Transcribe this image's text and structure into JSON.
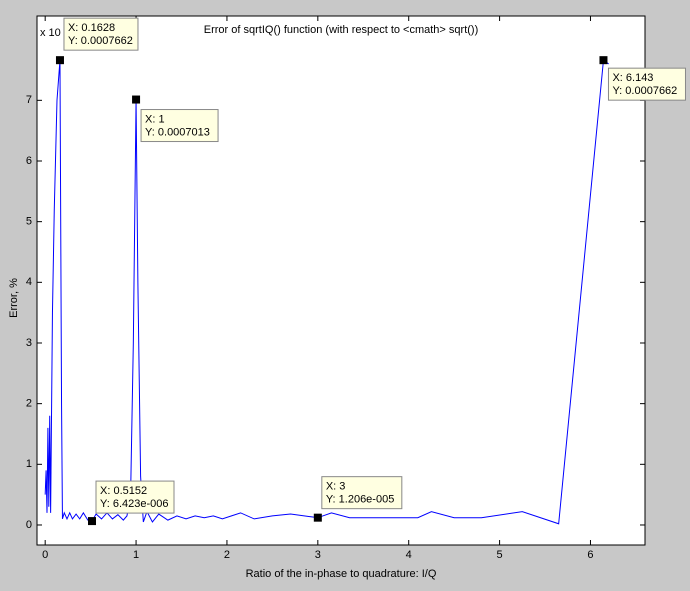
{
  "chart_data": {
    "type": "line",
    "title": "Error of sqrtIQ() function (with respect to <cmath> sqrt())",
    "x_label": "Ratio of the in-phase to quadrature: I/Q",
    "y_label": "Error, %",
    "exponent_label": "x 10",
    "color": "#0000ff",
    "x": [
      0,
      0.01,
      0.02,
      0.03,
      0.04,
      0.05,
      0.06,
      0.08,
      0.1,
      0.13,
      0.1628,
      0.18,
      0.19,
      0.21,
      0.24,
      0.27,
      0.3,
      0.34,
      0.38,
      0.42,
      0.47,
      0.5152,
      0.56,
      0.62,
      0.68,
      0.74,
      0.8,
      0.86,
      0.9,
      0.94,
      0.97,
      1,
      1.02,
      1.05,
      1.08,
      1.12,
      1.18,
      1.25,
      1.35,
      1.45,
      1.55,
      1.65,
      1.75,
      1.85,
      1.95,
      2.05,
      2.15,
      2.3,
      2.5,
      2.7,
      2.9,
      3,
      3.15,
      3.35,
      3.6,
      3.9,
      4.1,
      4.25,
      4.5,
      4.8,
      5.25,
      5.65,
      6.143,
      6.2
    ],
    "values": [
      0.5,
      0.9,
      0.2,
      1.6,
      0.3,
      1.8,
      0.2,
      3.5,
      5.2,
      7.0,
      7.662,
      2.0,
      0.1,
      0.2,
      0.1,
      0.2,
      0.1,
      0.18,
      0.1,
      0.2,
      0.08,
      0.06423,
      0.18,
      0.1,
      0.2,
      0.1,
      0.17,
      0.08,
      0.15,
      0.5,
      3.0,
      7.013,
      4.0,
      0.8,
      0.05,
      0.22,
      0.05,
      0.18,
      0.08,
      0.15,
      0.1,
      0.15,
      0.12,
      0.15,
      0.1,
      0.15,
      0.2,
      0.1,
      0.15,
      0.18,
      0.14,
      0.1206,
      0.2,
      0.12,
      0.12,
      0.12,
      0.12,
      0.22,
      0.12,
      0.12,
      0.22,
      0.02,
      7.662,
      7.6
    ],
    "xlim": [
      -0.09,
      6.6
    ],
    "ylim": [
      -0.33,
      8.39
    ],
    "xticks": [
      0,
      1,
      2,
      3,
      4,
      5,
      6
    ],
    "yticks": [
      0,
      1,
      2,
      3,
      4,
      5,
      6,
      7
    ],
    "datatips": [
      {
        "x": 0.1628,
        "y": 7.662,
        "x_label": "X: 0.1628",
        "y_label": "Y: 0.0007662"
      },
      {
        "x": 1,
        "y": 7.013,
        "x_label": "X: 1",
        "y_label": "Y: 0.0007013"
      },
      {
        "x": 0.5152,
        "y": 0.06423,
        "x_label": "X: 0.5152",
        "y_label": "Y: 6.423e-006"
      },
      {
        "x": 3,
        "y": 0.1206,
        "x_label": "X: 3",
        "y_label": "Y: 1.206e-005"
      },
      {
        "x": 6.143,
        "y": 7.662,
        "x_label": "X: 6.143",
        "y_label": "Y: 0.0007662"
      }
    ]
  }
}
